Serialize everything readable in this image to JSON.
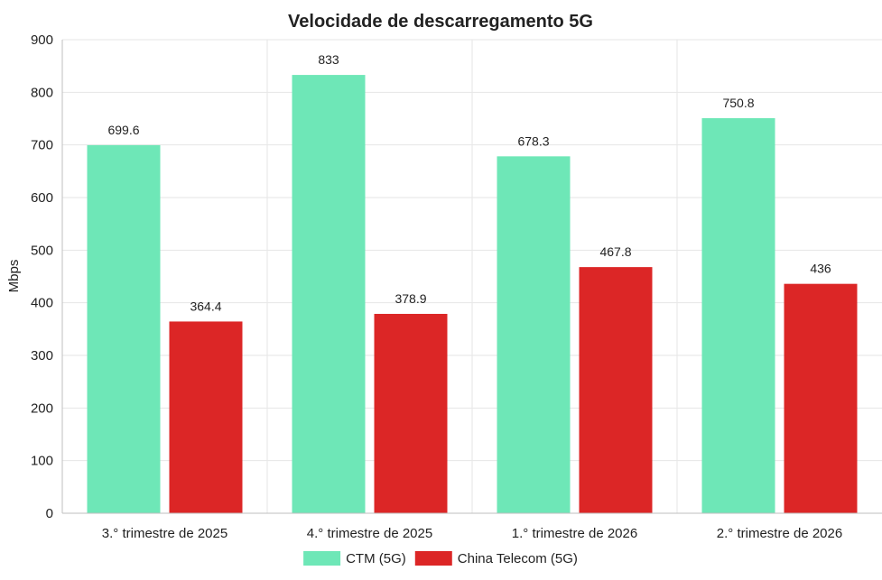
{
  "chart_data": {
    "type": "bar",
    "title": "Velocidade de descarregamento 5G",
    "xlabel": "",
    "ylabel": "Mbps",
    "ylim": [
      0,
      900
    ],
    "yticks": [
      0,
      100,
      200,
      300,
      400,
      500,
      600,
      700,
      800,
      900
    ],
    "ytick_labels": [
      "0",
      "100",
      "200",
      "300",
      "400",
      "500",
      "600",
      "700",
      "800",
      "900"
    ],
    "grid": true,
    "legend_position": "bottom-center",
    "categories": [
      "3.°  trimestre de 2025",
      "4.°  trimestre de 2025",
      "1.°  trimestre de 2026",
      "2.°  trimestre de 2026"
    ],
    "series": [
      {
        "name": "CTM (5G)",
        "color": "#6ee7b7",
        "values": [
          699.6,
          833,
          678.3,
          750.8
        ],
        "labels": [
          "699.6",
          "833",
          "678.3",
          "750.8"
        ]
      },
      {
        "name": "China Telecom (5G)",
        "color": "#dc2626",
        "values": [
          364.4,
          378.9,
          467.8,
          436
        ],
        "labels": [
          "364.4",
          "378.9",
          "467.8",
          "436"
        ]
      }
    ]
  }
}
